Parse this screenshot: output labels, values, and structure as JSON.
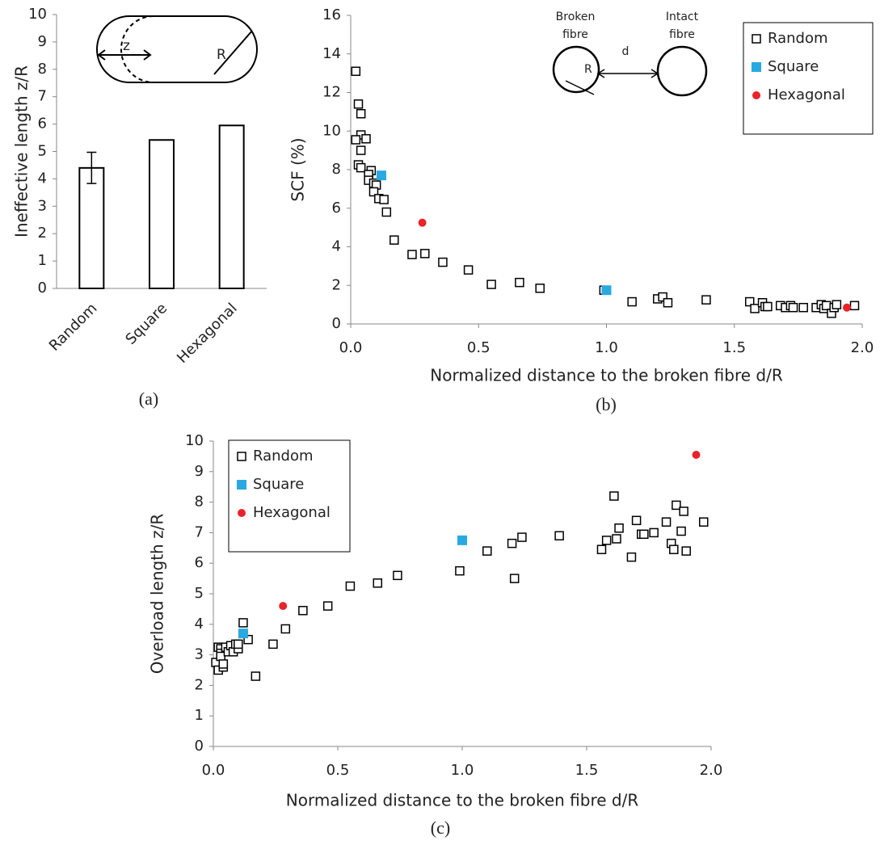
{
  "chart_data": [
    {
      "type": "bar",
      "caption": "(a)",
      "ylabel": "Ineffective length z/R",
      "categories": [
        "Random",
        "Square",
        "Hexagonal"
      ],
      "values": [
        4.4,
        5.42,
        5.95
      ],
      "errors": [
        0.57,
        null,
        null
      ],
      "color": "#ffffff",
      "ylim": [
        0,
        10
      ],
      "yticks": [
        0,
        1,
        2,
        3,
        4,
        5,
        6,
        7,
        8,
        9,
        10
      ],
      "grid": false,
      "annotations": [
        "z",
        "R"
      ]
    },
    {
      "type": "scatter",
      "caption": "(b)",
      "xlabel": "Normalized distance to the broken fibre d/R",
      "ylabel": "SCF (%)",
      "xlim": [
        0,
        2
      ],
      "xticks": [
        {
          "value": 0,
          "label": "0.0"
        },
        {
          "value": 0.5,
          "label": "0.5"
        },
        {
          "value": 1,
          "label": "1.0"
        },
        {
          "value": 1.5,
          "label": "1.5"
        },
        {
          "value": 2,
          "label": "2.0"
        }
      ],
      "ylim": [
        0,
        16
      ],
      "yticks": [
        0,
        2,
        4,
        6,
        8,
        10,
        12,
        14,
        16
      ],
      "grid": false,
      "legend": "upper right",
      "annotations": [
        "Broken",
        "fibre",
        "Intact",
        "fibre",
        "R",
        "d"
      ],
      "series": [
        {
          "name": "Random",
          "color": "#000000",
          "marker": "open-square",
          "x": [
            0.02,
            0.03,
            0.04,
            0.04,
            0.02,
            0.06,
            0.04,
            0.03,
            0.04,
            0.08,
            0.07,
            0.07,
            0.09,
            0.1,
            0.09,
            0.11,
            0.13,
            0.14,
            0.17,
            0.24,
            0.29,
            0.36,
            0.46,
            0.55,
            0.66,
            0.74,
            0.99,
            1.1,
            1.2,
            1.22,
            1.24,
            1.39,
            1.56,
            1.58,
            1.61,
            1.62,
            1.63,
            1.68,
            1.7,
            1.72,
            1.73,
            1.77,
            1.82,
            1.84,
            1.85,
            1.86,
            1.88,
            1.89,
            1.9,
            1.97
          ],
          "values": [
            13.1,
            11.4,
            10.9,
            9.8,
            9.55,
            9.6,
            9.0,
            8.25,
            8.1,
            7.95,
            7.75,
            7.45,
            7.3,
            7.2,
            6.85,
            6.5,
            6.45,
            5.8,
            4.35,
            3.6,
            3.65,
            3.2,
            2.8,
            2.05,
            2.15,
            1.85,
            1.75,
            1.15,
            1.3,
            1.4,
            1.1,
            1.25,
            1.15,
            0.8,
            1.1,
            0.9,
            0.9,
            0.95,
            0.85,
            0.95,
            0.85,
            0.85,
            0.85,
            1.0,
            0.8,
            0.95,
            0.55,
            0.85,
            1.0,
            0.95
          ]
        },
        {
          "name": "Square",
          "color": "#29a9e0",
          "marker": "square",
          "x": [
            0.12,
            1.0
          ],
          "values": [
            7.7,
            1.75
          ]
        },
        {
          "name": "Hexagonal",
          "color": "#e8242a",
          "marker": "circle",
          "x": [
            0.28,
            1.94
          ],
          "values": [
            5.25,
            0.85
          ]
        }
      ]
    },
    {
      "type": "scatter",
      "caption": "(c)",
      "xlabel": "Normalized distance to the broken fibre d/R",
      "ylabel": "Overload length z/R",
      "xlim": [
        0,
        2
      ],
      "xticks": [
        {
          "value": 0,
          "label": "0.0"
        },
        {
          "value": 0.5,
          "label": "0.5"
        },
        {
          "value": 1,
          "label": "1.0"
        },
        {
          "value": 1.5,
          "label": "1.5"
        },
        {
          "value": 2,
          "label": "2.0"
        }
      ],
      "ylim": [
        0,
        10
      ],
      "yticks": [
        0,
        1,
        2,
        3,
        4,
        5,
        6,
        7,
        8,
        9,
        10
      ],
      "grid": false,
      "legend": "upper left",
      "series": [
        {
          "name": "Random",
          "color": "#000000",
          "marker": "open-square",
          "x": [
            0.01,
            0.02,
            0.02,
            0.03,
            0.03,
            0.03,
            0.04,
            0.04,
            0.05,
            0.06,
            0.07,
            0.08,
            0.09,
            0.1,
            0.1,
            0.12,
            0.14,
            0.17,
            0.24,
            0.29,
            0.36,
            0.46,
            0.55,
            0.66,
            0.74,
            0.99,
            1.1,
            1.2,
            1.21,
            1.24,
            1.39,
            1.56,
            1.58,
            1.61,
            1.62,
            1.63,
            1.68,
            1.7,
            1.72,
            1.73,
            1.77,
            1.82,
            1.84,
            1.85,
            1.86,
            1.88,
            1.89,
            1.9,
            1.97
          ],
          "values": [
            2.75,
            2.5,
            3.25,
            3.2,
            3.05,
            2.95,
            2.6,
            2.7,
            3.25,
            3.1,
            3.3,
            3.1,
            3.35,
            3.2,
            3.35,
            4.05,
            3.5,
            2.3,
            3.35,
            3.85,
            4.45,
            4.6,
            5.25,
            5.35,
            5.6,
            5.75,
            6.4,
            6.65,
            5.5,
            6.85,
            6.9,
            6.45,
            6.75,
            8.2,
            6.8,
            7.15,
            6.2,
            7.4,
            6.95,
            6.95,
            7.0,
            7.35,
            6.65,
            6.45,
            7.9,
            7.05,
            7.7,
            6.4,
            7.35
          ]
        },
        {
          "name": "Square",
          "color": "#29a9e0",
          "marker": "square",
          "x": [
            0.12,
            1.0
          ],
          "values": [
            3.7,
            6.75
          ]
        },
        {
          "name": "Hexagonal",
          "color": "#e8242a",
          "marker": "circle",
          "x": [
            0.28,
            1.94
          ],
          "values": [
            4.6,
            9.55
          ]
        }
      ]
    }
  ]
}
